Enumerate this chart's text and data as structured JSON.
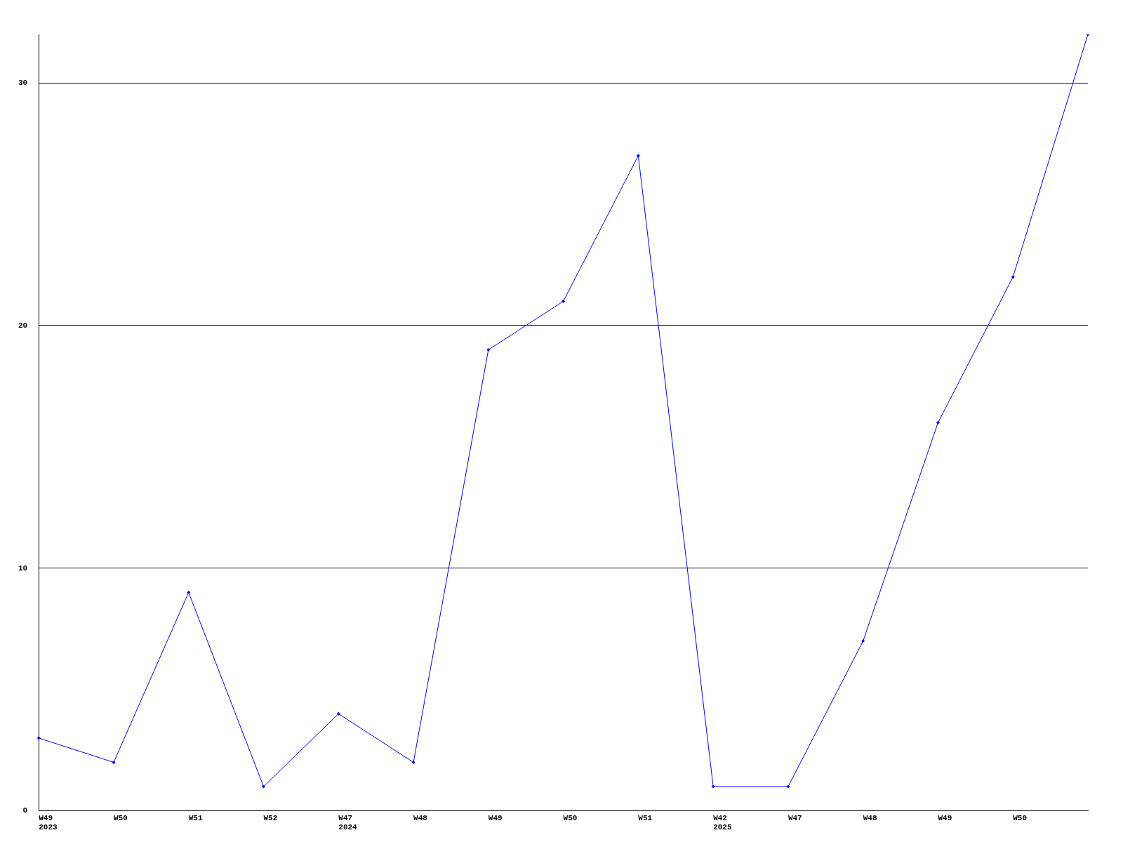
{
  "chart_data": {
    "type": "line",
    "categories": [
      "W49\n2023",
      "W50",
      "W51",
      "W52",
      "W47\n2024",
      "W48",
      "W49",
      "W50",
      "W51",
      "W42\n2025",
      "W47",
      "W48",
      "W49",
      "W50",
      null
    ],
    "series": [
      {
        "color": "#0000ff",
        "values": [
          3,
          2,
          9,
          1,
          4,
          2,
          19,
          21,
          27,
          1,
          1,
          7,
          16,
          22,
          32
        ]
      }
    ],
    "ylim": [
      0,
      32
    ],
    "yticks": [
      0,
      10,
      20,
      30
    ],
    "grid": "y",
    "legend": false,
    "marker": "diamond",
    "line_style": "solid"
  }
}
